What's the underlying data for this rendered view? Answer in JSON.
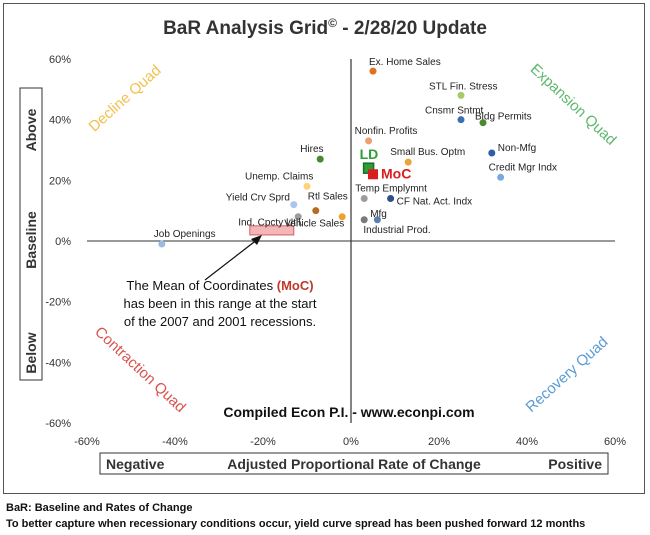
{
  "chart_data": {
    "type": "scatter",
    "title": "BaR Analysis Grid",
    "title_mark": "©",
    "title_suffix": " - 2/28/20 Update",
    "xlim": [
      -60,
      60
    ],
    "ylim": [
      -60,
      60
    ],
    "x_ticks": [
      -60,
      -40,
      -20,
      0,
      20,
      40,
      60
    ],
    "y_ticks": [
      -60,
      -40,
      -20,
      0,
      20,
      40,
      60
    ],
    "x_tick_labels": [
      "-60%",
      "-40%",
      "-20%",
      "0%",
      "20%",
      "40%",
      "60%"
    ],
    "y_tick_labels": [
      "-60%",
      "-40%",
      "-20%",
      "0%",
      "20%",
      "40%",
      "60%"
    ],
    "xlabel": {
      "left": "Negative",
      "center": "Adjusted Proportional Rate of Change",
      "right": "Positive"
    },
    "ylabel": {
      "top": "Above",
      "middle": "Baseline",
      "bottom": "Below"
    },
    "grid": false,
    "quadrants": {
      "top_left": {
        "label": "Decline Quad",
        "color": "#f2c14e"
      },
      "top_right": {
        "label": "Expansion Quad",
        "color": "#5cb86a"
      },
      "bottom_left": {
        "label": "Contraction Quad",
        "color": "#d9534f"
      },
      "bottom_right": {
        "label": "Recovery Quad",
        "color": "#5b9bd5"
      }
    },
    "points": [
      {
        "label": "Ex. Home Sales",
        "x": 5,
        "y": 56,
        "color": "#e2711d"
      },
      {
        "label": "STL Fin. Stress",
        "x": 25,
        "y": 48,
        "color": "#a8c86a"
      },
      {
        "label": "Cnsmr Sntmt",
        "x": 25,
        "y": 40,
        "color": "#3a6fb6"
      },
      {
        "label": "Bldg Permits",
        "x": 30,
        "y": 39,
        "color": "#4a8a2c"
      },
      {
        "label": "Nonfin. Profits",
        "x": 4,
        "y": 33,
        "color": "#f0a070"
      },
      {
        "label": "Non-Mfg",
        "x": 32,
        "y": 29,
        "color": "#2d5fa8"
      },
      {
        "label": "Small Bus. Optm",
        "x": 13,
        "y": 26,
        "color": "#e8a63a"
      },
      {
        "label": "Credit Mgr Indx",
        "x": 34,
        "y": 21,
        "color": "#7aa8e0"
      },
      {
        "label": "Hires",
        "x": -7,
        "y": 27,
        "color": "#4a8a2c"
      },
      {
        "label": "Unemp. Claims",
        "x": -10,
        "y": 18,
        "color": "#ffd27a"
      },
      {
        "label": "Yield Crv Sprd",
        "x": -13,
        "y": 12,
        "color": "#a9c7ea"
      },
      {
        "label": "Rtl Sales",
        "x": -8,
        "y": 10,
        "color": "#b86b1e"
      },
      {
        "label": "Ind. Cpcty Util.",
        "x": -12,
        "y": 8,
        "color": "#9c9c9c"
      },
      {
        "label": "Vehicle Sales",
        "x": -2,
        "y": 8,
        "color": "#f0a030"
      },
      {
        "label": "Temp Emplymnt",
        "x": 3,
        "y": 14,
        "color": "#9c9c9c"
      },
      {
        "label": "CF Nat. Act. Indx",
        "x": 9,
        "y": 14,
        "color": "#2d4e8a"
      },
      {
        "label": "Mfg",
        "x": 3,
        "y": 7,
        "color": "#7a7a7a"
      },
      {
        "label": "Industrial Prod.",
        "x": 6,
        "y": 7,
        "color": "#5a7fb0"
      },
      {
        "label": "Job Openings",
        "x": -43,
        "y": -1,
        "color": "#9bbbe0"
      }
    ],
    "markers": [
      {
        "label": "LD",
        "x": 4,
        "y": 24,
        "color": "#2e9e3a"
      },
      {
        "label": "MoC",
        "x": 5,
        "y": 22,
        "color": "#d81e1e"
      }
    ],
    "moc_range": {
      "x0": -23,
      "x1": -13,
      "y0": 2,
      "y1": 5,
      "color": "#f4b6b6",
      "border": "#d06060"
    },
    "annotation": {
      "line1": "The Mean of Coordinates ",
      "line1_em": "(MoC)",
      "line2": "has been in this range at the start",
      "line3": "of the 2007 and 2001 recessions."
    },
    "credit": "Compiled Econ P.I. - www.econpi.com"
  },
  "footer": {
    "line1": "BaR: Baseline and Rates of Change",
    "line2": "To better capture when recessionary conditions occur, yield curve spread has been pushed forward 12 months"
  }
}
